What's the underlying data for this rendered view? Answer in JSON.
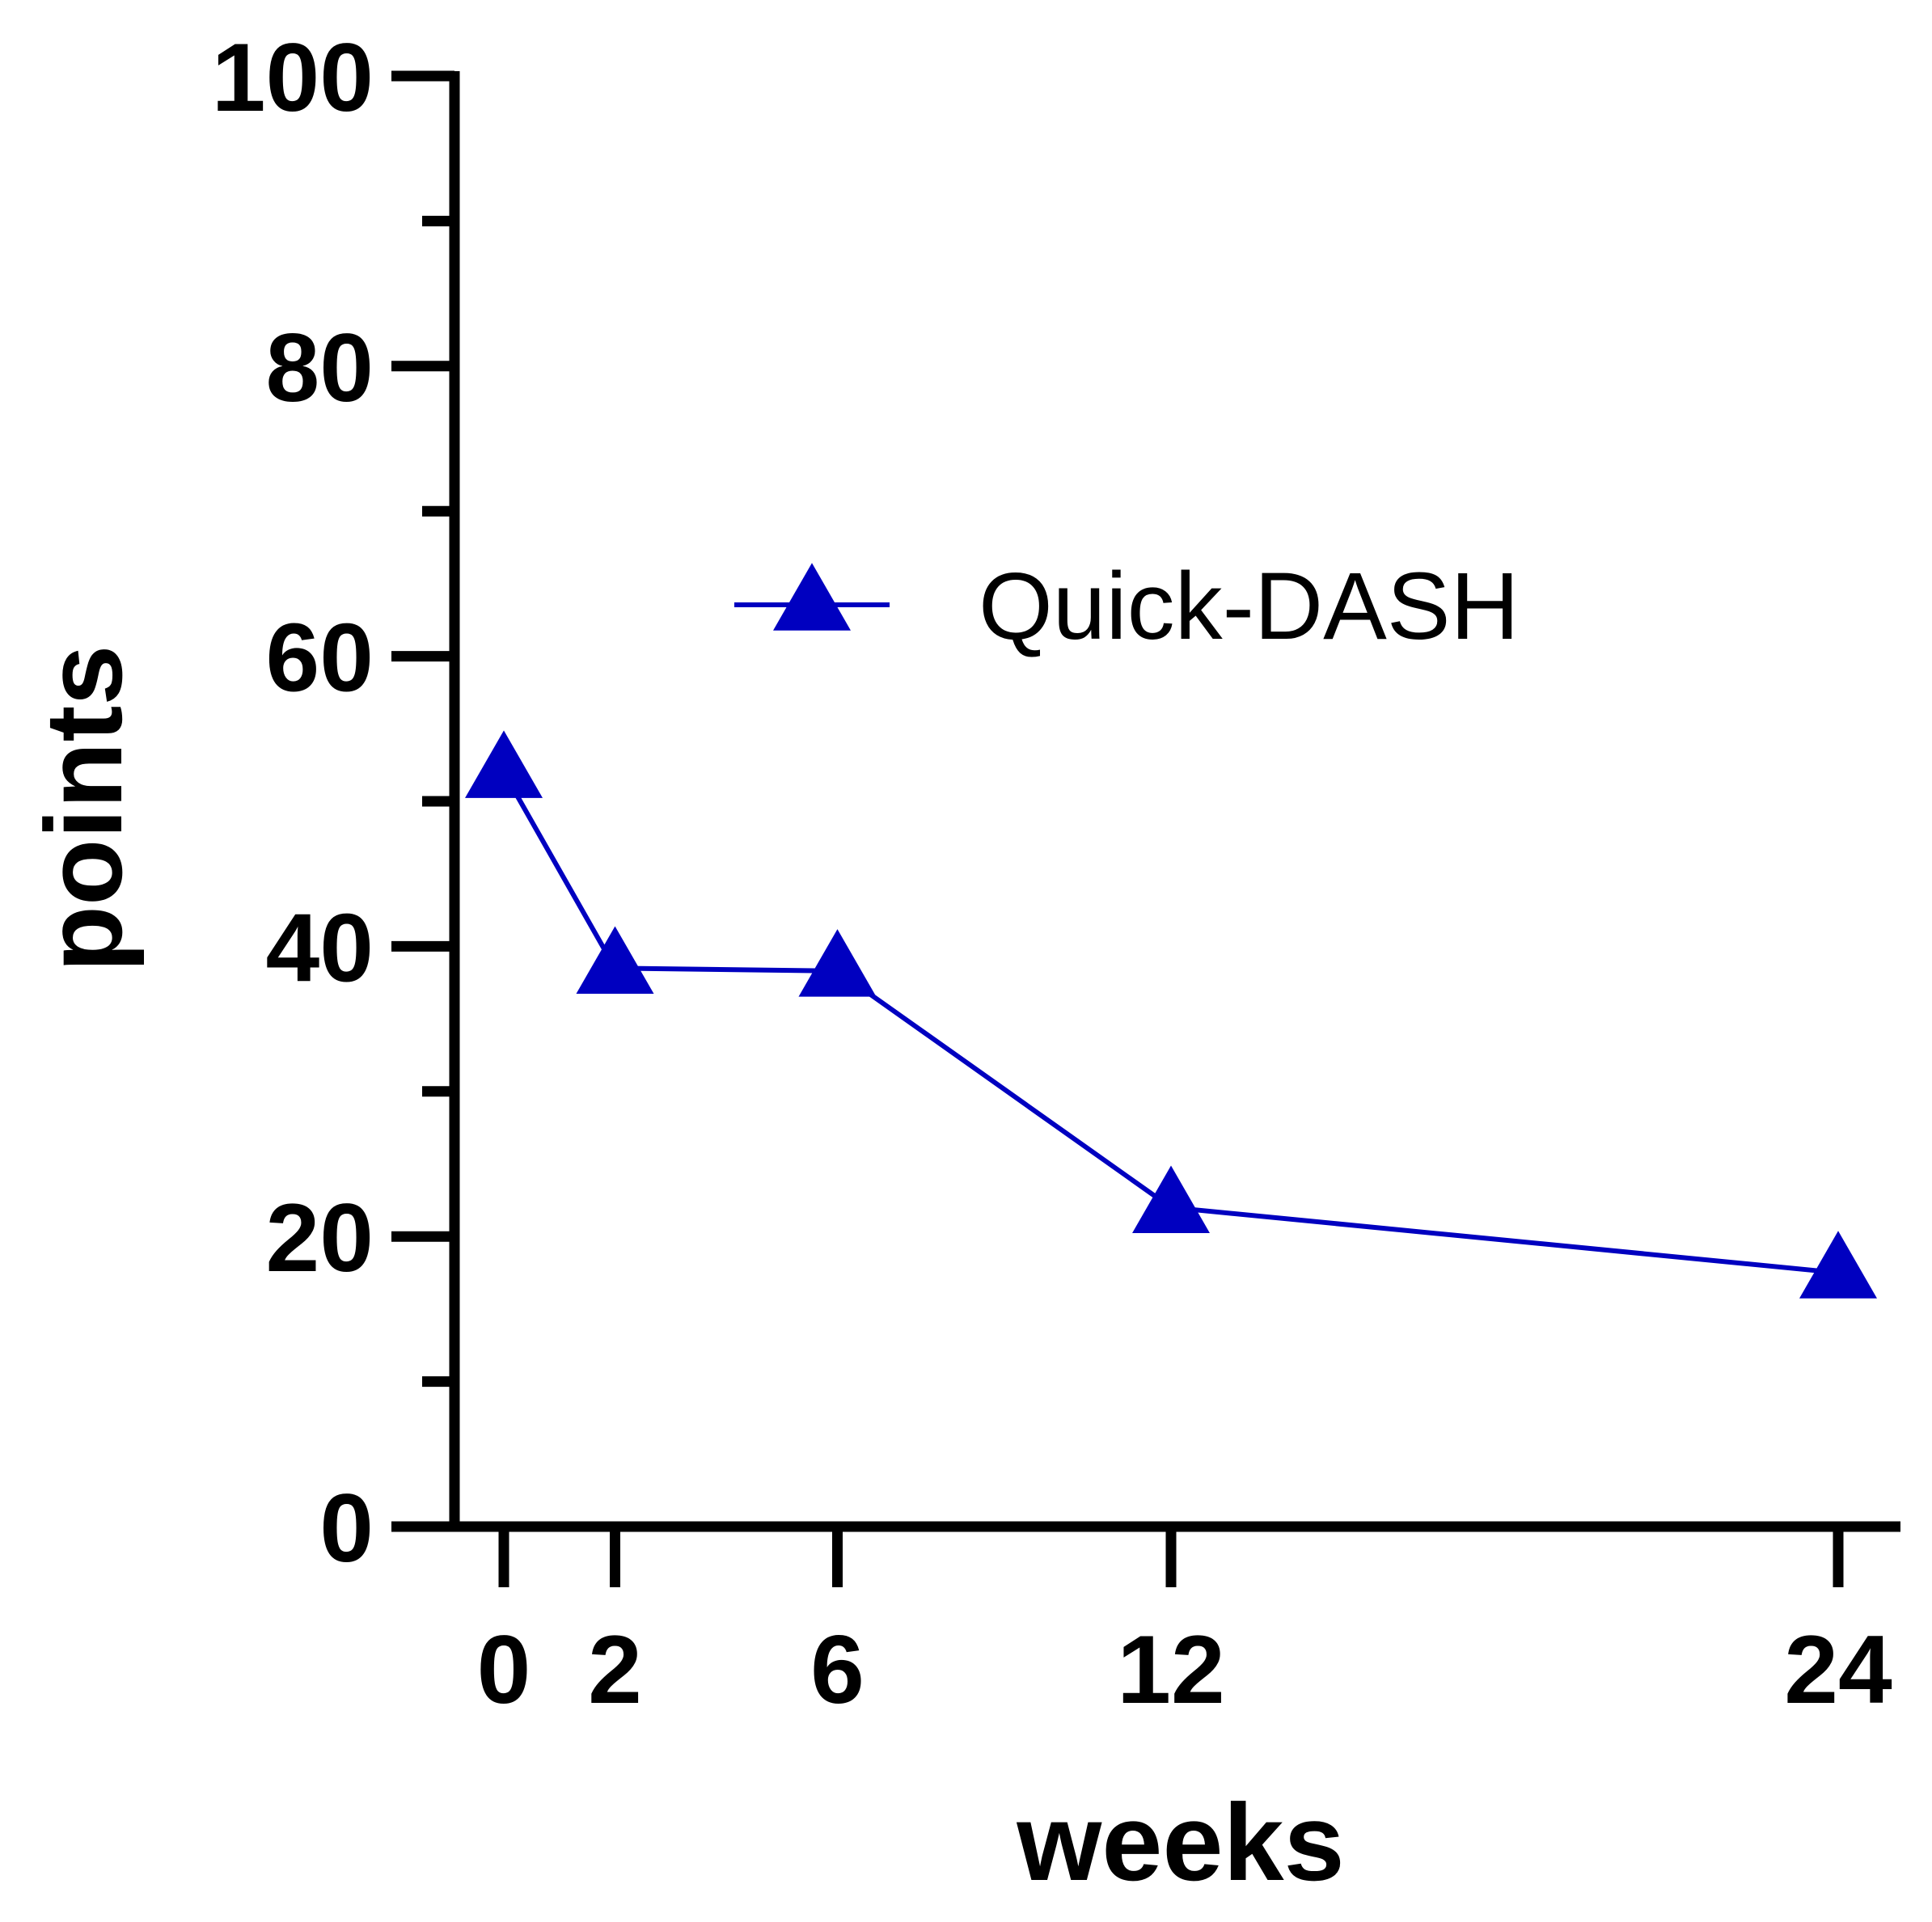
{
  "chart_data": {
    "type": "line",
    "x": [
      0,
      2,
      6,
      12,
      24
    ],
    "series": [
      {
        "name": "Quick-DASH",
        "values": [
          52,
          38.5,
          38.3,
          22,
          17.5
        ],
        "color": "#0000c0",
        "marker": "triangle-up"
      }
    ],
    "xlabel": "weeks",
    "ylabel": "points",
    "xticks": [
      "0",
      "2",
      "6",
      "12",
      "24"
    ],
    "yticks": [
      "0",
      "20",
      "40",
      "60",
      "80",
      "100"
    ],
    "xlim": [
      0,
      24
    ],
    "ylim": [
      0,
      100
    ],
    "grid": false,
    "legend": "top-right"
  }
}
